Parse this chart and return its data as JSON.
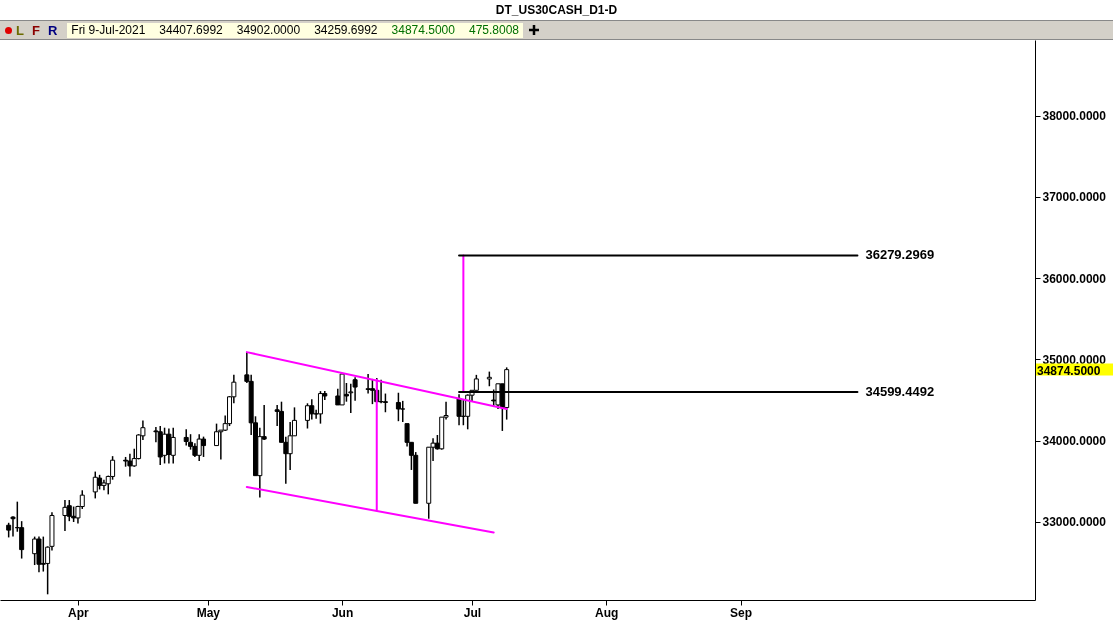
{
  "chart_data": {
    "type": "candlestick",
    "title": "DT_US30CASH_D1-D",
    "annotations": [
      "L",
      "F",
      "R",
      "Fri 9-Jul-2021",
      "34407.6992",
      "34902.0000",
      "34259.6992",
      "34874.5000",
      "475.8008",
      "34874.5000"
    ],
    "x": [
      "2021-03-16",
      "2021-03-17",
      "2021-03-18",
      "2021-03-19",
      "2021-03-22",
      "2021-03-23",
      "2021-03-24",
      "2021-03-25",
      "2021-03-26",
      "2021-03-29",
      "2021-03-30",
      "2021-03-31",
      "2021-04-01",
      "2021-04-02",
      "2021-04-05",
      "2021-04-06",
      "2021-04-07",
      "2021-04-08",
      "2021-04-09",
      "2021-04-12",
      "2021-04-13",
      "2021-04-14",
      "2021-04-15",
      "2021-04-16",
      "2021-04-19",
      "2021-04-20",
      "2021-04-21",
      "2021-04-22",
      "2021-04-23",
      "2021-04-26",
      "2021-04-27",
      "2021-04-28",
      "2021-04-29",
      "2021-04-30",
      "2021-05-03",
      "2021-05-04",
      "2021-05-05",
      "2021-05-06",
      "2021-05-07",
      "2021-05-10",
      "2021-05-11",
      "2021-05-12",
      "2021-05-13",
      "2021-05-14",
      "2021-05-17",
      "2021-05-18",
      "2021-05-19",
      "2021-05-20",
      "2021-05-21",
      "2021-05-24",
      "2021-05-25",
      "2021-05-26",
      "2021-05-27",
      "2021-05-28",
      "2021-05-31",
      "2021-06-01",
      "2021-06-02",
      "2021-06-03",
      "2021-06-04",
      "2021-06-07",
      "2021-06-08",
      "2021-06-09",
      "2021-06-10",
      "2021-06-11",
      "2021-06-14",
      "2021-06-15",
      "2021-06-16",
      "2021-06-17",
      "2021-06-18",
      "2021-06-21",
      "2021-06-22",
      "2021-06-23",
      "2021-06-24",
      "2021-06-25",
      "2021-06-28",
      "2021-06-29",
      "2021-06-30",
      "2021-07-01",
      "2021-07-02",
      "2021-07-05",
      "2021-07-06",
      "2021-07-07",
      "2021-07-08",
      "2021-07-09"
    ],
    "ohlc": [
      [
        32960,
        32990,
        32810,
        32900
      ],
      [
        33060,
        33070,
        32820,
        33040
      ],
      [
        32930,
        33250,
        32880,
        32930
      ],
      [
        32930,
        33010,
        32550,
        32660
      ],
      [
        32610,
        32820,
        32470,
        32790
      ],
      [
        32790,
        32820,
        32380,
        32480
      ],
      [
        32490,
        32820,
        32390,
        32480
      ],
      [
        32490,
        32700,
        32110,
        32690
      ],
      [
        32700,
        33120,
        32650,
        33080
      ],
      [
        33080,
        33270,
        32890,
        33180
      ],
      [
        33200,
        33270,
        33010,
        33070
      ],
      [
        33070,
        33190,
        33000,
        33050
      ],
      [
        33050,
        33200,
        32980,
        33190
      ],
      [
        33190,
        33390,
        33160,
        33330
      ],
      [
        33370,
        33620,
        33290,
        33550
      ],
      [
        33540,
        33580,
        33400,
        33450
      ],
      [
        33450,
        33520,
        33390,
        33480
      ],
      [
        33470,
        33570,
        33340,
        33560
      ],
      [
        33560,
        33810,
        33520,
        33760
      ],
      [
        33760,
        33800,
        33680,
        33750
      ],
      [
        33750,
        33840,
        33560,
        33690
      ],
      [
        33690,
        33900,
        33680,
        33780
      ],
      [
        33780,
        34080,
        33770,
        34070
      ],
      [
        34060,
        34250,
        34010,
        34160
      ],
      [
        34120,
        34170,
        33980,
        34110
      ],
      [
        34110,
        34180,
        33700,
        33800
      ],
      [
        33820,
        34160,
        33720,
        34080
      ],
      [
        34080,
        34150,
        33720,
        33830
      ],
      [
        33820,
        34160,
        33720,
        34040
      ],
      [
        34040,
        34140,
        33940,
        33990
      ],
      [
        33980,
        34080,
        33890,
        33930
      ],
      [
        33930,
        33970,
        33800,
        33820
      ],
      [
        33820,
        34080,
        33750,
        34020
      ],
      [
        34020,
        34050,
        33800,
        33940
      ],
      [
        33940,
        34210,
        33940,
        34110
      ],
      [
        34110,
        34130,
        33770,
        34130
      ],
      [
        34130,
        34310,
        34120,
        34210
      ],
      [
        34210,
        34550,
        34180,
        34540
      ],
      [
        34540,
        34810,
        34460,
        34720
      ],
      [
        34810,
        35090,
        34710,
        34730
      ],
      [
        34730,
        34810,
        34070,
        34220
      ],
      [
        34220,
        34300,
        33570,
        33570
      ],
      [
        33570,
        34160,
        33300,
        34050
      ],
      [
        34050,
        34440,
        34010,
        34020
      ],
      [
        34380,
        34440,
        34180,
        34360
      ],
      [
        34360,
        34480,
        33980,
        33980
      ],
      [
        33980,
        34050,
        33470,
        33840
      ],
      [
        33840,
        34230,
        33640,
        34060
      ],
      [
        34060,
        34410,
        34060,
        34250
      ],
      [
        34250,
        34460,
        34150,
        34430
      ],
      [
        34430,
        34510,
        34260,
        34330
      ],
      [
        34330,
        34380,
        34270,
        34330
      ],
      [
        34330,
        34610,
        34210,
        34580
      ],
      [
        34580,
        34610,
        34500,
        34550
      ],
      [
        34550,
        34640,
        34440,
        34440
      ],
      [
        34440,
        34830,
        34440,
        34820
      ],
      [
        34570,
        34710,
        34480,
        34550
      ],
      [
        34590,
        34700,
        34340,
        34600
      ],
      [
        34750,
        34780,
        34490,
        34660
      ],
      [
        34630,
        34820,
        34580,
        34640
      ],
      [
        34640,
        34760,
        34450,
        34620
      ],
      [
        34620,
        34770,
        34480,
        34480
      ],
      [
        34480,
        34750,
        34460,
        34480
      ],
      [
        34480,
        34580,
        34350,
        34470
      ],
      [
        34470,
        34590,
        34240,
        34390
      ],
      [
        34390,
        34490,
        34230,
        34390
      ],
      [
        34210,
        34210,
        33930,
        33980
      ],
      [
        33980,
        33980,
        33640,
        33820
      ],
      [
        33820,
        33860,
        33230,
        33230
      ],
      [
        33230,
        33920,
        33040,
        33920
      ],
      [
        33920,
        34030,
        33750,
        33970
      ],
      [
        33970,
        34070,
        33890,
        33900
      ],
      [
        33900,
        34290,
        33890,
        34290
      ],
      [
        34290,
        34480,
        34260,
        34310
      ],
      [
        34520,
        34570,
        34190,
        34300
      ],
      [
        34300,
        34500,
        34190,
        34300
      ],
      [
        34300,
        34570,
        34140,
        34560
      ],
      [
        34560,
        34620,
        34480,
        34620
      ],
      [
        34620,
        34810,
        34620,
        34760
      ],
      [
        34760,
        34850,
        34670,
        34780
      ],
      [
        34500,
        34630,
        34420,
        34490
      ],
      [
        34440,
        34700,
        34390,
        34700
      ],
      [
        34700,
        34700,
        34120,
        34410
      ],
      [
        34407.6992,
        34902,
        34259.6992,
        34874.5
      ]
    ],
    "series": [
      {
        "type": "line",
        "color": "#ff00ff",
        "x": [
          "2021-05-10",
          "2021-07-09"
        ],
        "values": [
          35090,
          34390
        ]
      },
      {
        "type": "line",
        "color": "#ff00ff",
        "x": [
          "2021-05-10",
          "2021-07-06"
        ],
        "values": [
          33430,
          32870
        ]
      },
      {
        "type": "line",
        "color": "#ff00ff",
        "x": [
          "2021-06-09",
          "2021-06-09"
        ],
        "values": [
          34750,
          33150
        ]
      },
      {
        "type": "line",
        "color": "#ff00ff",
        "x": [
          "2021-06-29",
          "2021-06-29"
        ],
        "values": [
          34599.4492,
          36279.2969
        ]
      },
      {
        "type": "line",
        "name": "36279.2969",
        "color": "#000000",
        "x": [
          "2021-06-28",
          "2021-09-28"
        ],
        "values": [
          36279.2969,
          36279.2969
        ]
      },
      {
        "type": "line",
        "name": "34599.4492",
        "color": "#000000",
        "x": [
          "2021-06-28",
          "2021-09-28"
        ],
        "values": [
          34599.4492,
          34599.4492
        ]
      }
    ],
    "xlim": [
      "2021-03-14",
      "2021-11-08"
    ],
    "xticks": [
      {
        "value": "2021-04-01",
        "label": "Apr"
      },
      {
        "value": "2021-05-01",
        "label": "May"
      },
      {
        "value": "2021-06-01",
        "label": "Jun"
      },
      {
        "value": "2021-07-01",
        "label": "Jul"
      },
      {
        "value": "2021-08-01",
        "label": "Aug"
      },
      {
        "value": "2021-09-01",
        "label": "Sep"
      }
    ],
    "ylim": [
      32040,
      38930
    ],
    "yticks": [
      {
        "value": 33000,
        "label": "33000.0000"
      },
      {
        "value": 34000,
        "label": "34000.0000"
      },
      {
        "value": 35000,
        "label": "35000.0000"
      },
      {
        "value": 36000,
        "label": "36000.0000"
      },
      {
        "value": 37000,
        "label": "37000.0000"
      },
      {
        "value": 38000,
        "label": "38000.0000"
      }
    ]
  }
}
